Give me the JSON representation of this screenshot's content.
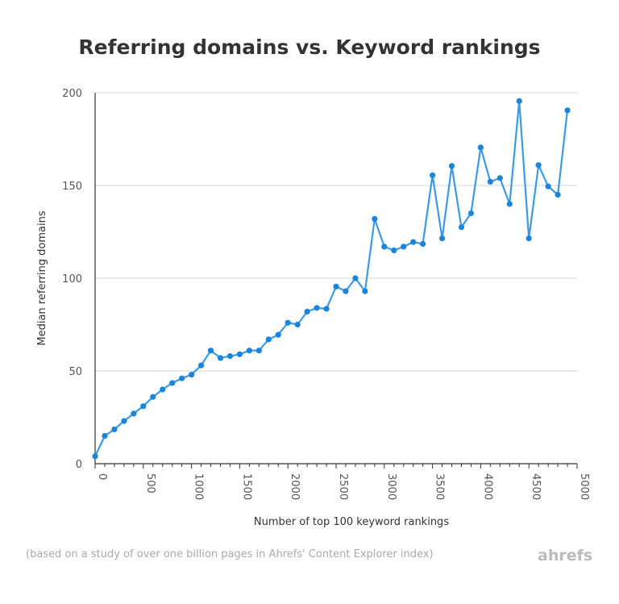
{
  "chart_data": {
    "type": "line",
    "title": "Referring domains vs. Keyword rankings",
    "xlabel": "Number of top 100 keyword rankings",
    "ylabel": "Median referring domains",
    "xlim": [
      0,
      5000
    ],
    "ylim": [
      0,
      200
    ],
    "xticks": [
      0,
      500,
      1000,
      1500,
      2000,
      2500,
      3000,
      3500,
      4000,
      4500,
      5000
    ],
    "yticks": [
      0,
      50,
      100,
      150,
      200
    ],
    "grid": "horizontal",
    "color": "#1a85de",
    "x": [
      0,
      100,
      200,
      300,
      400,
      500,
      600,
      700,
      800,
      900,
      1000,
      1100,
      1200,
      1300,
      1400,
      1500,
      1600,
      1700,
      1800,
      1900,
      2000,
      2100,
      2200,
      2300,
      2400,
      2500,
      2600,
      2700,
      2800,
      2900,
      3000,
      3100,
      3200,
      3300,
      3400,
      3500,
      3600,
      3700,
      3800,
      3900,
      4000,
      4100,
      4200,
      4300,
      4400,
      4500,
      4600,
      4700,
      4800,
      4900
    ],
    "y": [
      4,
      15,
      18.5,
      23,
      27,
      31,
      36,
      40,
      43.5,
      46,
      48,
      53,
      61,
      57,
      58,
      59,
      61,
      61,
      67,
      69.5,
      76,
      75,
      82,
      84,
      83.5,
      95.5,
      93,
      100,
      93,
      132,
      117,
      115,
      117,
      119.5,
      118.5,
      155.5,
      121.5,
      160.5,
      127.5,
      135,
      170.5,
      152,
      154,
      140,
      195.5,
      121.5,
      161,
      149.5,
      145,
      190.5
    ]
  },
  "footnote": "(based on a study of over one billion pages in Ahrefs' Content Explorer index)",
  "logo": "ahrefs"
}
